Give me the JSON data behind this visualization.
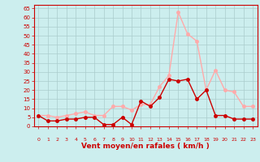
{
  "x": [
    0,
    1,
    2,
    3,
    4,
    5,
    6,
    7,
    8,
    9,
    10,
    11,
    12,
    13,
    14,
    15,
    16,
    17,
    18,
    19,
    20,
    21,
    22,
    23
  ],
  "wind_avg": [
    6,
    3,
    3,
    4,
    4,
    5,
    5,
    1,
    1,
    5,
    1,
    14,
    11,
    16,
    26,
    25,
    26,
    15,
    20,
    6,
    6,
    4,
    4,
    4
  ],
  "wind_gust": [
    6,
    6,
    5,
    6,
    7,
    8,
    6,
    6,
    11,
    11,
    9,
    12,
    12,
    22,
    28,
    63,
    51,
    47,
    20,
    31,
    20,
    19,
    11,
    11
  ],
  "color_avg": "#cc0000",
  "color_gust": "#ffaaaa",
  "bg_color": "#cceeee",
  "grid_color": "#aacccc",
  "xlabel": "Vent moyen/en rafales ( km/h )",
  "xlabel_color": "#cc0000",
  "yticks": [
    0,
    5,
    10,
    15,
    20,
    25,
    30,
    35,
    40,
    45,
    50,
    55,
    60,
    65
  ],
  "ylim": [
    0,
    67
  ],
  "xlim": [
    -0.5,
    23.5
  ],
  "tick_label_color": "#cc0000",
  "spine_color": "#cc0000",
  "marker_size": 2.5,
  "linewidth": 1.0,
  "title_color": "#cc0000"
}
